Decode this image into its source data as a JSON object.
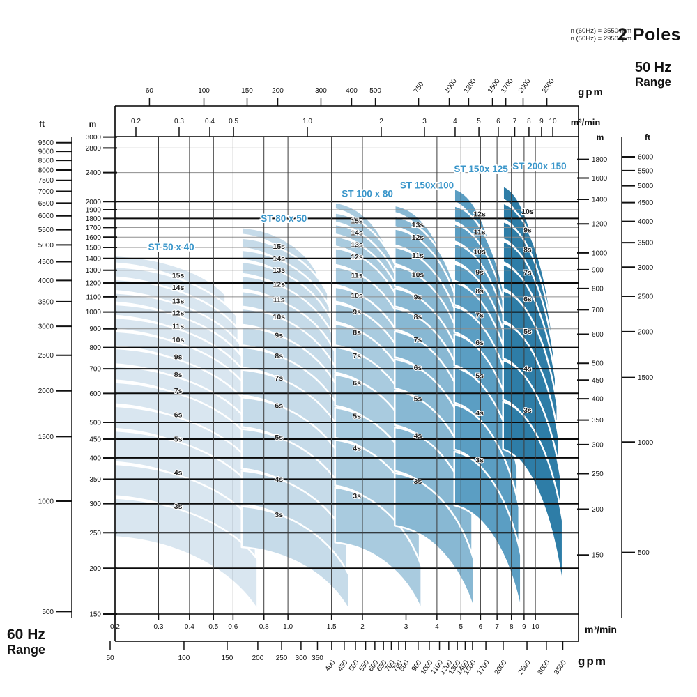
{
  "header": {
    "rpm_note_1": "n (60Hz) = 3550 rpm",
    "rpm_note_2": "n (50Hz) = 2950 rpm",
    "poles": "2 Poles",
    "hz50_line1": "50 Hz",
    "hz50_line2": "Range",
    "hz60_line1": "60 Hz",
    "hz60_line2": "Range"
  },
  "units": {
    "gpm": "gpm",
    "m3min": "m³/min",
    "ft": "ft",
    "m": "m"
  },
  "chart_data": {
    "type": "area",
    "description": "Pump coverage range chart, 2-pole ST series; head (m / ft) vs capacity (m3/min / gpm); 60 Hz scales bottom-left, 50 Hz scales top-right",
    "axes": {
      "top_gpm_50hz": [
        60,
        100,
        150,
        200,
        300,
        400,
        500,
        750,
        1000,
        1200,
        1500,
        1700,
        2000,
        2500
      ],
      "top_m3min_50hz": [
        "0.2",
        "0.3",
        "0.4",
        "0.5",
        "1.0",
        "2",
        "3",
        "4",
        "5",
        "6",
        "7",
        "8",
        "9",
        "10"
      ],
      "left_ft_60hz": [
        9500,
        9000,
        8500,
        8000,
        7500,
        7000,
        6500,
        6000,
        5500,
        5000,
        4500,
        4000,
        3500,
        3000,
        2500,
        2000,
        1500,
        1000,
        500
      ],
      "left_m_60hz": [
        3000,
        2800,
        2400,
        2000,
        1900,
        1800,
        1700,
        1600,
        1500,
        1400,
        1300,
        1200,
        1100,
        1000,
        900,
        800,
        700,
        600,
        500,
        450,
        400,
        350,
        300,
        250,
        200,
        150
      ],
      "right_m_50hz": [
        1800,
        1600,
        1400,
        1200,
        1000,
        900,
        800,
        700,
        600,
        500,
        450,
        400,
        350,
        300,
        250,
        200,
        150
      ],
      "right_ft_50hz": [
        6000,
        5500,
        5000,
        4500,
        4000,
        3500,
        3000,
        2500,
        2000,
        1500,
        1000,
        500
      ],
      "bottom_m3min_60hz": [
        "0.2",
        "0.3",
        "0.4",
        "0.5",
        "0.6",
        "0.8",
        "1.0",
        "1.5",
        "2",
        "3",
        "4",
        "5",
        "6",
        "7",
        "8",
        "9",
        "10"
      ],
      "bottom_gpm_60hz": [
        50,
        100,
        150,
        200,
        250,
        300,
        350,
        400,
        450,
        500,
        550,
        600,
        650,
        700,
        750,
        800,
        900,
        1000,
        1100,
        1200,
        1300,
        1400,
        1500,
        1700,
        2000,
        2500,
        3000,
        3500
      ]
    },
    "series": [
      {
        "name": "ST 50 x 40",
        "color": "#d9e6f0",
        "q_min": 0.2,
        "q_max": 0.62,
        "q_label": 0.36,
        "stages": [
          {
            "label": "15s",
            "head_m": 1260
          },
          {
            "label": "14s",
            "head_m": 1165
          },
          {
            "label": "13s",
            "head_m": 1070
          },
          {
            "label": "12s",
            "head_m": 995
          },
          {
            "label": "11s",
            "head_m": 915
          },
          {
            "label": "10s",
            "head_m": 840
          },
          {
            "label": "9s",
            "head_m": 755
          },
          {
            "label": "8s",
            "head_m": 675
          },
          {
            "label": "7s",
            "head_m": 610
          },
          {
            "label": "6s",
            "head_m": 525
          },
          {
            "label": "5s",
            "head_m": 450
          },
          {
            "label": "4s",
            "head_m": 365
          },
          {
            "label": "3s",
            "head_m": 295
          }
        ]
      },
      {
        "name": "ST 80 x 50",
        "color": "#c6dbe9",
        "q_min": 0.65,
        "q_max": 1.45,
        "q_label": 0.92,
        "stages": [
          {
            "label": "15s",
            "head_m": 1510
          },
          {
            "label": "14s",
            "head_m": 1400
          },
          {
            "label": "13s",
            "head_m": 1300
          },
          {
            "label": "12s",
            "head_m": 1190
          },
          {
            "label": "11s",
            "head_m": 1080
          },
          {
            "label": "10s",
            "head_m": 970
          },
          {
            "label": "9s",
            "head_m": 865
          },
          {
            "label": "8s",
            "head_m": 760
          },
          {
            "label": "7s",
            "head_m": 660
          },
          {
            "label": "6s",
            "head_m": 555
          },
          {
            "label": "5s",
            "head_m": 455
          },
          {
            "label": "4s",
            "head_m": 350
          },
          {
            "label": "3s",
            "head_m": 280
          }
        ]
      },
      {
        "name": "ST 100 x 80",
        "color": "#a9cbdf",
        "q_min": 1.55,
        "q_max": 2.85,
        "q_label": 1.9,
        "stages": [
          {
            "label": "15s",
            "head_m": 1770
          },
          {
            "label": "14s",
            "head_m": 1645
          },
          {
            "label": "13s",
            "head_m": 1525
          },
          {
            "label": "12s",
            "head_m": 1415
          },
          {
            "label": "11s",
            "head_m": 1260
          },
          {
            "label": "10s",
            "head_m": 1110
          },
          {
            "label": "9s",
            "head_m": 1000
          },
          {
            "label": "8s",
            "head_m": 880
          },
          {
            "label": "7s",
            "head_m": 760
          },
          {
            "label": "6s",
            "head_m": 640
          },
          {
            "label": "5s",
            "head_m": 520
          },
          {
            "label": "4s",
            "head_m": 425
          },
          {
            "label": "3s",
            "head_m": 315
          }
        ]
      },
      {
        "name": "ST 150x 100",
        "color": "#88b8d3",
        "q_min": 2.7,
        "q_max": 4.8,
        "q_label": 3.35,
        "stages": [
          {
            "label": "13s",
            "head_m": 1730
          },
          {
            "label": "12s",
            "head_m": 1600
          },
          {
            "label": "11s",
            "head_m": 1425
          },
          {
            "label": "10s",
            "head_m": 1265
          },
          {
            "label": "9s",
            "head_m": 1100
          },
          {
            "label": "8s",
            "head_m": 970
          },
          {
            "label": "7s",
            "head_m": 840
          },
          {
            "label": "6s",
            "head_m": 705
          },
          {
            "label": "5s",
            "head_m": 580
          },
          {
            "label": "4s",
            "head_m": 460
          },
          {
            "label": "3s",
            "head_m": 345
          }
        ]
      },
      {
        "name": "ST 150x 125",
        "color": "#5b9ec3",
        "q_min": 4.7,
        "q_max": 7.55,
        "q_label": 5.95,
        "stages": [
          {
            "label": "12s",
            "head_m": 1850
          },
          {
            "label": "11s",
            "head_m": 1650
          },
          {
            "label": "10s",
            "head_m": 1460
          },
          {
            "label": "9s",
            "head_m": 1285
          },
          {
            "label": "8s",
            "head_m": 1140
          },
          {
            "label": "7s",
            "head_m": 980
          },
          {
            "label": "6s",
            "head_m": 825
          },
          {
            "label": "5s",
            "head_m": 670
          },
          {
            "label": "4s",
            "head_m": 530
          },
          {
            "label": "3s",
            "head_m": 395
          }
        ]
      },
      {
        "name": "ST 200x 150",
        "color": "#2e7da7",
        "q_min": 7.4,
        "q_max": 11.5,
        "q_label": 9.3,
        "stages": [
          {
            "label": "10s",
            "head_m": 1880
          },
          {
            "label": "9s",
            "head_m": 1675
          },
          {
            "label": "8s",
            "head_m": 1480
          },
          {
            "label": "7s",
            "head_m": 1280
          },
          {
            "label": "6s",
            "head_m": 1085
          },
          {
            "label": "5s",
            "head_m": 885
          },
          {
            "label": "4s",
            "head_m": 700
          },
          {
            "label": "3s",
            "head_m": 540
          }
        ]
      }
    ]
  }
}
